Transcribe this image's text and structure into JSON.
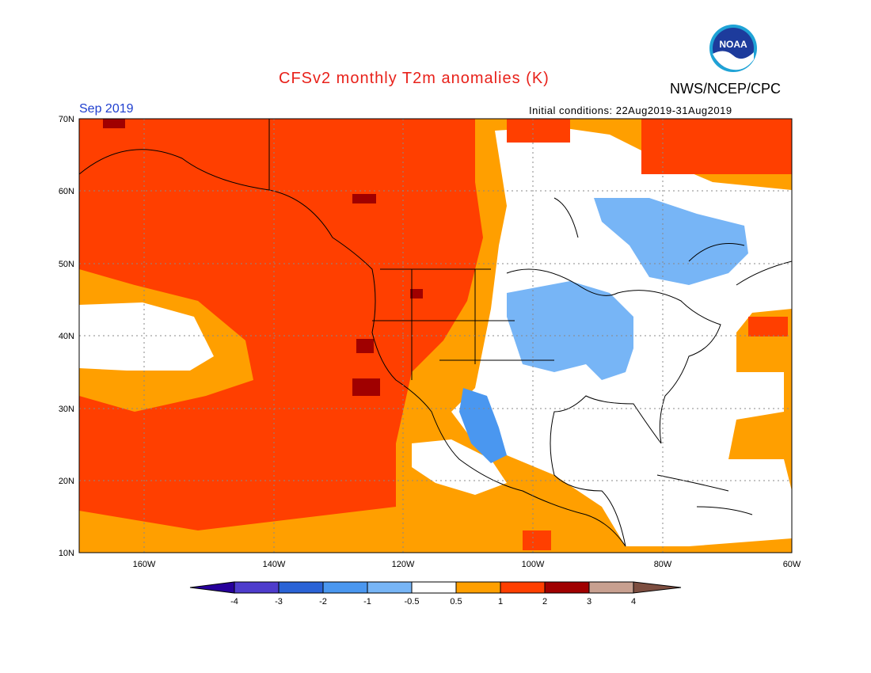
{
  "header": {
    "title": "CFSv2 monthly T2m anomalies (K)",
    "organization": "NWS/NCEP/CPC",
    "month": "Sep 2019",
    "initial_conditions": "Initial conditions: 22Aug2019-31Aug2019",
    "logo_text": "NOAA"
  },
  "map": {
    "lat_labels": [
      "70N",
      "60N",
      "50N",
      "40N",
      "30N",
      "20N",
      "10N"
    ],
    "lon_labels": [
      "160W",
      "140W",
      "120W",
      "100W",
      "80W",
      "60W"
    ],
    "colors": {
      "ocean_warm": "#ff3f00",
      "moderate_warm": "#ff9f00",
      "neutral": "#ffffff",
      "cool": "#77b5f6",
      "cooler": "#4a97f0",
      "hot": "#a00000"
    }
  },
  "colorbar": {
    "labels": [
      "-4",
      "-3",
      "-2",
      "-1",
      "-0.5",
      "0.5",
      "1",
      "2",
      "3",
      "4"
    ],
    "colors": [
      "#27009b",
      "#4e3ccc",
      "#2a63d6",
      "#4a97f0",
      "#77b5f6",
      "#ffffff",
      "#ff9f00",
      "#ff3f00",
      "#a00000",
      "#c8a090",
      "#7d4e40"
    ]
  }
}
